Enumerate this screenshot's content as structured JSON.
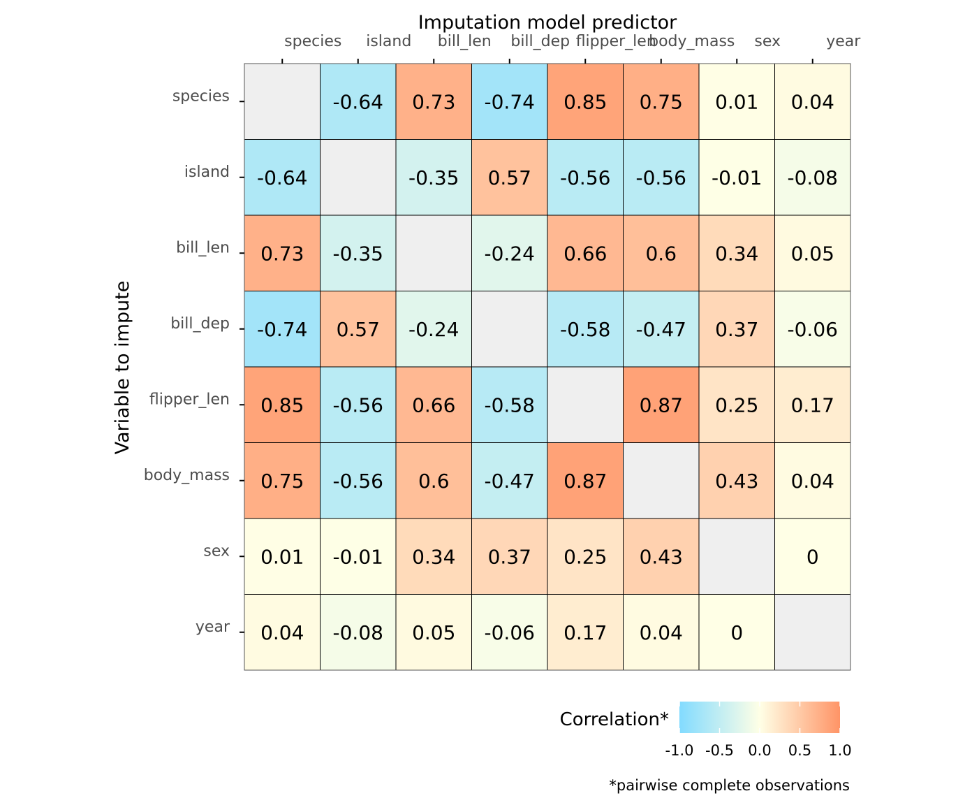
{
  "chart_data": {
    "type": "heatmap",
    "title": "Imputation model predictor",
    "xlabel": "Imputation model predictor",
    "ylabel": "Variable to impute",
    "x_categories": [
      "species",
      "island",
      "bill_len",
      "bill_dep",
      "flipper_len",
      "body_mass",
      "sex",
      "year"
    ],
    "y_categories": [
      "species",
      "island",
      "bill_len",
      "bill_dep",
      "flipper_len",
      "body_mass",
      "sex",
      "year"
    ],
    "values": [
      [
        null,
        -0.64,
        0.73,
        -0.74,
        0.85,
        0.75,
        0.01,
        0.04
      ],
      [
        -0.64,
        null,
        -0.35,
        0.57,
        -0.56,
        -0.56,
        -0.01,
        -0.08
      ],
      [
        0.73,
        -0.35,
        null,
        -0.24,
        0.66,
        0.6,
        0.34,
        0.05
      ],
      [
        -0.74,
        0.57,
        -0.24,
        null,
        -0.58,
        -0.47,
        0.37,
        -0.06
      ],
      [
        0.85,
        -0.56,
        0.66,
        -0.58,
        null,
        0.87,
        0.25,
        0.17
      ],
      [
        0.75,
        -0.56,
        0.6,
        -0.47,
        0.87,
        null,
        0.43,
        0.04
      ],
      [
        0.01,
        -0.01,
        0.34,
        0.37,
        0.25,
        0.43,
        null,
        0
      ],
      [
        0.04,
        -0.08,
        0.05,
        -0.06,
        0.17,
        0.04,
        0,
        null
      ]
    ],
    "legend": {
      "title": "Correlation*",
      "range": [
        -1.0,
        1.0
      ],
      "ticks": [
        -1.0,
        -0.5,
        0.0,
        0.5,
        1.0
      ],
      "tick_labels": [
        "-1.0",
        "-0.5",
        "0.0",
        "0.5",
        "1.0"
      ],
      "colors": {
        "low": "#82dbff",
        "mid": "#ffffe6",
        "high": "#ff9466",
        "missing": "#efefef"
      },
      "placement": "bottom-right"
    },
    "caption": "*pairwise complete observations"
  }
}
